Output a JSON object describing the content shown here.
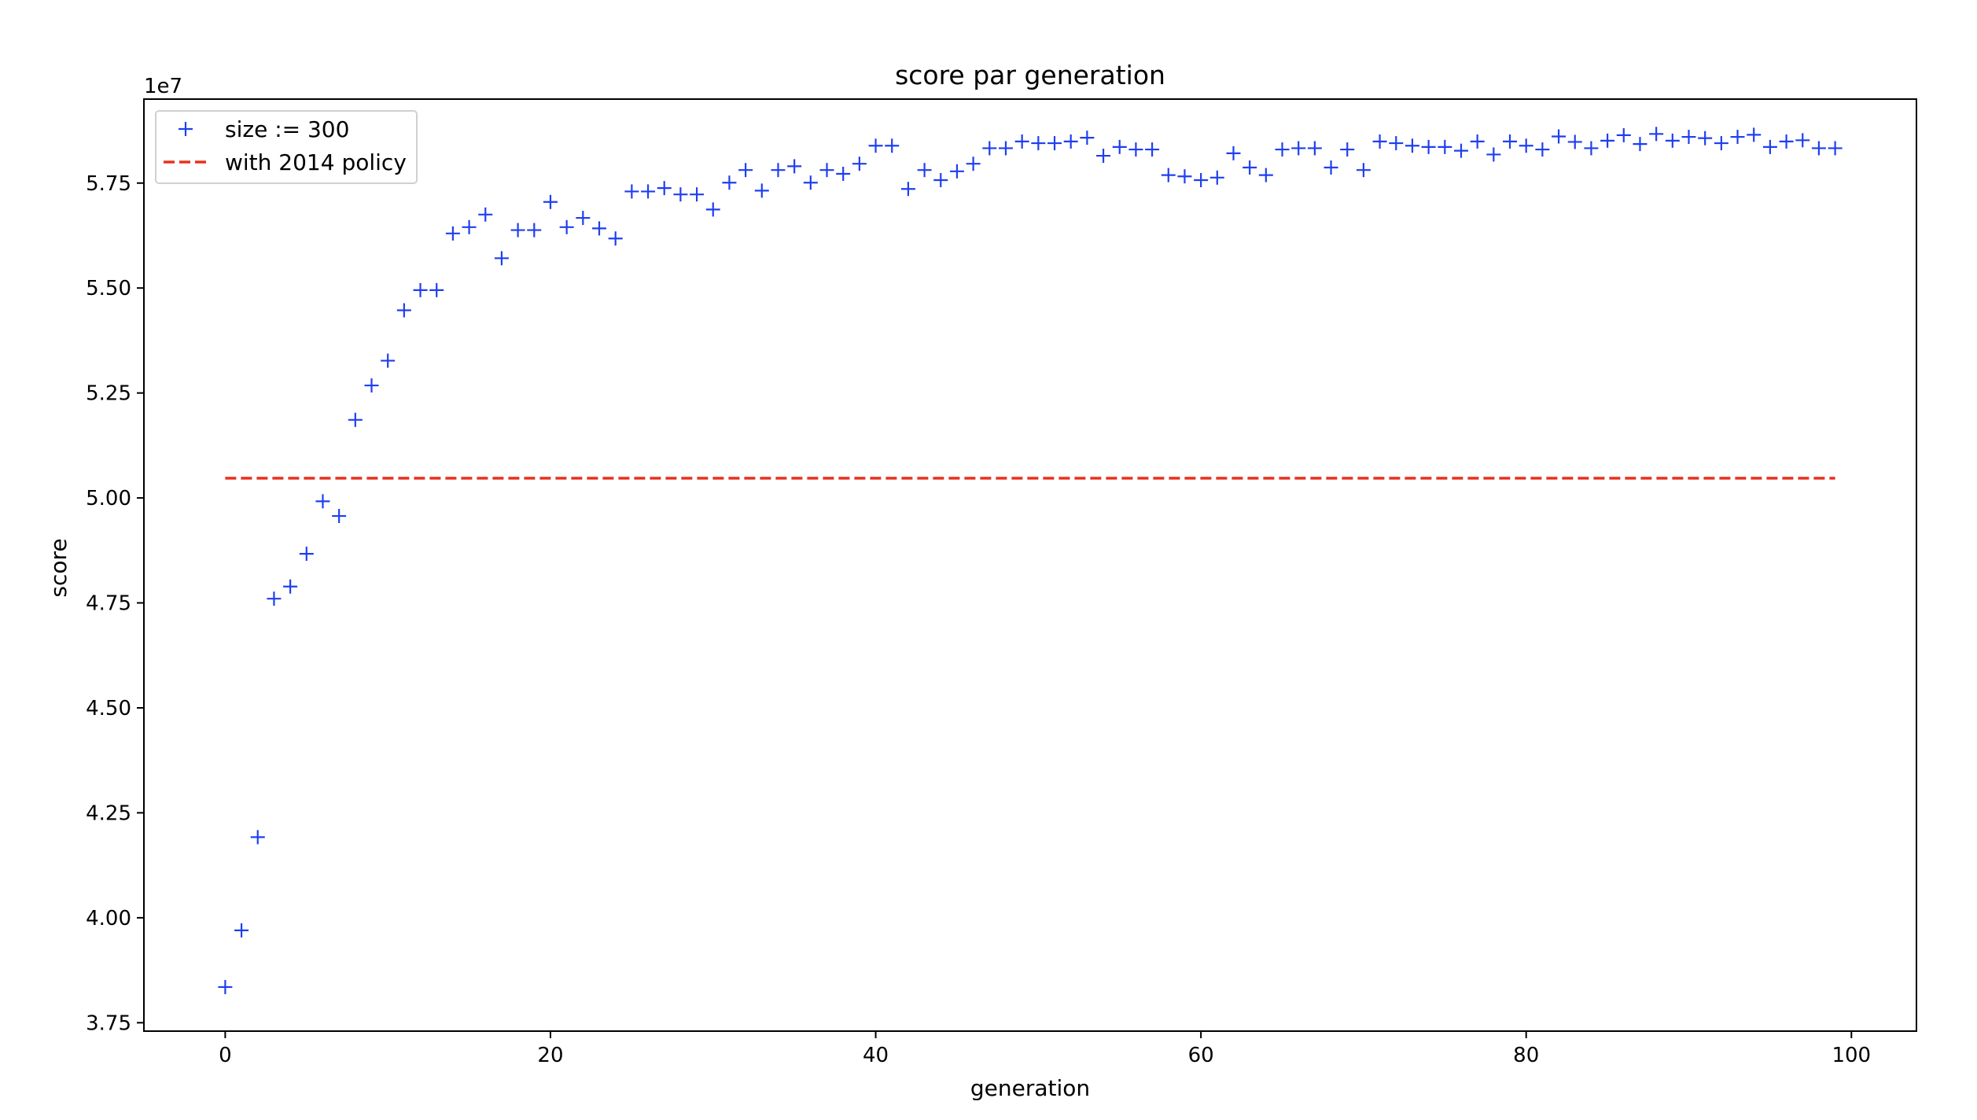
{
  "chart_data": {
    "type": "scatter",
    "title": "score par generation",
    "xlabel": "generation",
    "ylabel": "score",
    "y_offset_label": "1e7",
    "xlim": [
      -5,
      104
    ],
    "ylim": [
      3.73,
      5.95
    ],
    "x_ticks": [
      0,
      20,
      40,
      60,
      80,
      100
    ],
    "x_tick_labels": [
      "0",
      "20",
      "40",
      "60",
      "80",
      "100"
    ],
    "y_ticks": [
      3.75,
      4.0,
      4.25,
      4.5,
      4.75,
      5.0,
      5.25,
      5.5,
      5.75
    ],
    "y_tick_labels": [
      "3.75",
      "4.00",
      "4.25",
      "4.50",
      "4.75",
      "5.00",
      "5.25",
      "5.50",
      "5.75"
    ],
    "grid": false,
    "legend_position": "top-left",
    "series": [
      {
        "name": "size := 300",
        "kind": "scatter",
        "marker": "+",
        "color": "#1f3ff0",
        "x": [
          0,
          1,
          2,
          3,
          4,
          5,
          6,
          7,
          8,
          9,
          10,
          11,
          12,
          13,
          14,
          15,
          16,
          17,
          18,
          19,
          20,
          21,
          22,
          23,
          24,
          25,
          26,
          27,
          28,
          29,
          30,
          31,
          32,
          33,
          34,
          35,
          36,
          37,
          38,
          39,
          40,
          41,
          42,
          43,
          44,
          45,
          46,
          47,
          48,
          49,
          50,
          51,
          52,
          53,
          54,
          55,
          56,
          57,
          58,
          59,
          60,
          61,
          62,
          63,
          64,
          65,
          66,
          67,
          68,
          69,
          70,
          71,
          72,
          73,
          74,
          75,
          76,
          77,
          78,
          79,
          80,
          81,
          82,
          83,
          84,
          85,
          86,
          87,
          88,
          89,
          90,
          91,
          92,
          93,
          94,
          95,
          96,
          97,
          98,
          99
        ],
        "values": [
          3.835,
          3.97,
          4.192,
          4.76,
          4.789,
          4.867,
          4.992,
          4.957,
          5.186,
          5.268,
          5.327,
          5.447,
          5.495,
          5.495,
          5.63,
          5.645,
          5.675,
          5.571,
          5.638,
          5.638,
          5.705,
          5.645,
          5.667,
          5.642,
          5.618,
          5.73,
          5.73,
          5.738,
          5.723,
          5.723,
          5.687,
          5.751,
          5.781,
          5.732,
          5.781,
          5.79,
          5.751,
          5.781,
          5.772,
          5.796,
          5.839,
          5.839,
          5.736,
          5.781,
          5.757,
          5.778,
          5.796,
          5.833,
          5.833,
          5.849,
          5.845,
          5.845,
          5.849,
          5.858,
          5.815,
          5.836,
          5.83,
          5.83,
          5.769,
          5.766,
          5.757,
          5.763,
          5.821,
          5.787,
          5.769,
          5.83,
          5.833,
          5.833,
          5.787,
          5.83,
          5.781,
          5.849,
          5.845,
          5.839,
          5.836,
          5.836,
          5.827,
          5.849,
          5.818,
          5.849,
          5.839,
          5.83,
          5.861,
          5.848,
          5.833,
          5.851,
          5.864,
          5.843,
          5.867,
          5.851,
          5.86,
          5.857,
          5.845,
          5.86,
          5.865,
          5.836,
          5.849,
          5.852,
          5.833,
          5.833
        ]
      },
      {
        "name": "with 2014 policy",
        "kind": "line",
        "style": "dashed",
        "color": "#e8301e",
        "x": [
          0,
          99
        ],
        "values": [
          5.047,
          5.047
        ]
      }
    ]
  }
}
